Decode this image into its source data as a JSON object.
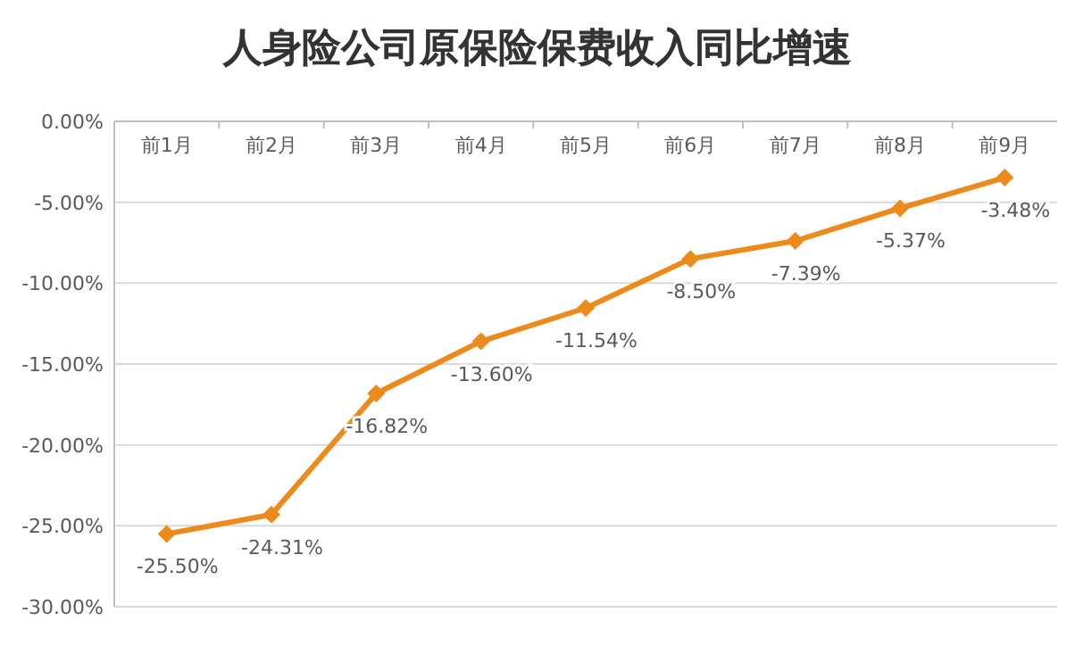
{
  "chart_data": {
    "type": "line",
    "title": "人身险公司原保险保费收入同比增速",
    "categories": [
      "前1月",
      "前2月",
      "前3月",
      "前4月",
      "前5月",
      "前6月",
      "前7月",
      "前8月",
      "前9月"
    ],
    "series": [
      {
        "color": "#ed8a1c",
        "values": [
          -25.5,
          -24.31,
          -16.82,
          -13.6,
          -11.54,
          -8.5,
          -7.39,
          -5.37,
          -3.48
        ],
        "value_labels": [
          "-25.50%",
          "-24.31%",
          "-16.82%",
          "-13.60%",
          "-11.54%",
          "-8.50%",
          "-7.39%",
          "-5.37%",
          "-3.48%"
        ]
      }
    ],
    "ylim": [
      -30,
      0
    ],
    "yticks": [
      {
        "value": 0,
        "label": "0.00%"
      },
      {
        "value": -5,
        "label": "-5.00%"
      },
      {
        "value": -10,
        "label": "-10.00%"
      },
      {
        "value": -15,
        "label": "-15.00%"
      },
      {
        "value": -20,
        "label": "-20.00%"
      },
      {
        "value": -25,
        "label": "-25.00%"
      },
      {
        "value": -30,
        "label": "-30.00%"
      }
    ],
    "grid": "y",
    "marker": "diamond",
    "line_style": "solid"
  }
}
